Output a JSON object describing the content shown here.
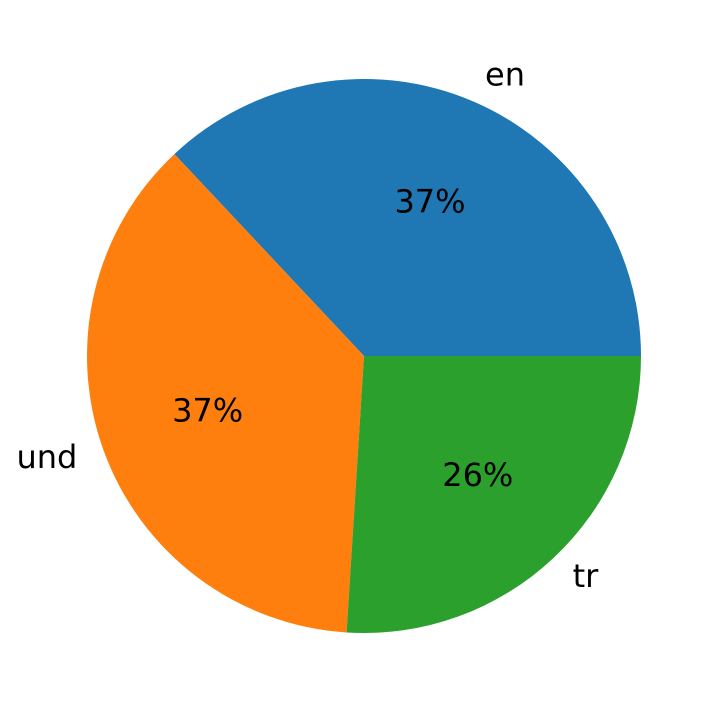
{
  "chart_data": {
    "type": "pie",
    "categories": [
      "en",
      "und",
      "tr"
    ],
    "values": [
      37,
      37,
      26
    ],
    "value_labels": [
      "37%",
      "37%",
      "26%"
    ],
    "colors": [
      "#1f77b4",
      "#ff7f0e",
      "#2ca02c"
    ]
  }
}
